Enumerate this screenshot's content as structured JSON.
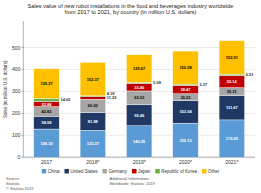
{
  "chart_data": {
    "type": "bar",
    "title": "Sales value of new robot installations in the food and beverages industry worldwide\nfrom 2017 to 2021, by country (in million U.S. dollars)",
    "categories": [
      "2017",
      "2018*",
      "2019*",
      "2020*",
      "2021*"
    ],
    "series": [
      {
        "name": "China",
        "color": "#5b9bd5",
        "values": [
          128.32,
          122.37,
          143.25,
          155.13,
          170.05
        ]
      },
      {
        "name": "United States",
        "color": "#1f3864",
        "values": [
          58.58,
          81.88,
          95.49,
          103.94,
          111.67
        ]
      },
      {
        "name": "Germany",
        "color": "#a6a6a6",
        "values": [
          43.83,
          60.03,
          63.23,
          30.23,
          35.31
        ]
      },
      {
        "name": "Japan",
        "color": "#c00000",
        "values": [
          22.88,
          11.29,
          33.46,
          38.47,
          55.14
        ]
      },
      {
        "name": "Republic of Korea",
        "color": "#70ad47",
        "values": [
          14.65,
          4.18,
          5.68,
          5.37,
          6.51
        ]
      },
      {
        "name": "Other",
        "color": "#ffc000",
        "values": [
          135.27,
          152.37,
          125.67,
          150.58,
          152.51
        ]
      }
    ],
    "ylabel": "Sales (in million U.S. dollars)",
    "ylim": [
      0,
      620
    ],
    "yticks": [
      0,
      100,
      200,
      300,
      400,
      500
    ],
    "stacked": true,
    "grid": true,
    "legend": "bottom",
    "data_labels": true,
    "annotations": [
      "Source:\nStatista\n© Statista 2019",
      "Additional Information:\nWorldwide; Statista; 2019"
    ]
  }
}
